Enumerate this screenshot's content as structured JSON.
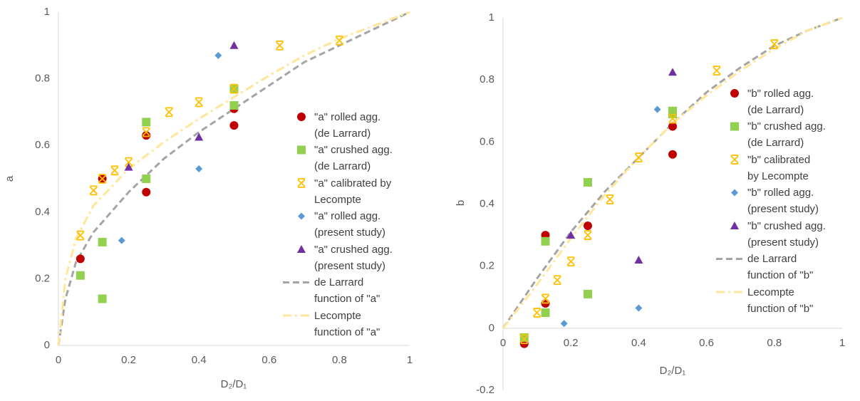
{
  "chart_data": [
    {
      "type": "scatter",
      "x_label": "D₂/D₁",
      "y_label": "a",
      "xlim": [
        0,
        1
      ],
      "ylim": [
        0,
        1
      ],
      "xticks": [
        0,
        0.2,
        0.4,
        0.6,
        0.8,
        1
      ],
      "yticks": [
        0,
        0.2,
        0.4,
        0.6,
        0.8,
        1
      ],
      "grid": false,
      "legend": "right",
      "series": [
        {
          "name": "\"a\" rolled agg.\n(de Larrard)",
          "color": "#c00000",
          "marker": "circle",
          "x": [
            0.0625,
            0.125,
            0.25,
            0.25,
            0.5,
            0.5
          ],
          "values": [
            0.26,
            0.5,
            0.63,
            0.46,
            0.71,
            0.66
          ]
        },
        {
          "name": "\"a\" crushed agg.\n(de Larrard)",
          "color": "#92d050",
          "marker": "square",
          "x": [
            0.0625,
            0.125,
            0.125,
            0.25,
            0.25,
            0.5,
            0.5
          ],
          "values": [
            0.21,
            0.31,
            0.14,
            0.67,
            0.5,
            0.77,
            0.72
          ]
        },
        {
          "name": "\"a\" calibrated by\nLecompte",
          "color": "#ffc000",
          "marker": "asterisk",
          "x": [
            0.0625,
            0.1,
            0.125,
            0.16,
            0.2,
            0.25,
            0.315,
            0.4,
            0.5,
            0.63,
            0.8
          ],
          "values": [
            0.33,
            0.465,
            0.5,
            0.525,
            0.55,
            0.64,
            0.7,
            0.73,
            0.77,
            0.9,
            0.915
          ]
        },
        {
          "name": "\"a\" rolled agg.\n(present study)",
          "color": "#5b9bd5",
          "marker": "diamond",
          "x": [
            0.18,
            0.4,
            0.455
          ],
          "values": [
            0.315,
            0.53,
            0.87
          ]
        },
        {
          "name": "\"a\" crushed agg.\n(present study)",
          "color": "#7030a0",
          "marker": "triangle",
          "x": [
            0.2,
            0.4,
            0.5
          ],
          "values": [
            0.535,
            0.625,
            0.9
          ]
        },
        {
          "name": "de Larrard\nfunction of \"a\"",
          "color": "#a5a5a5",
          "marker": "dash",
          "x": [
            0,
            0.02,
            0.05,
            0.1,
            0.2,
            0.3,
            0.4,
            0.5,
            0.6,
            0.7,
            0.8,
            0.9,
            1
          ],
          "values": [
            0,
            0.14,
            0.25,
            0.34,
            0.46,
            0.56,
            0.64,
            0.71,
            0.78,
            0.85,
            0.9,
            0.95,
            1
          ]
        },
        {
          "name": "Lecompte\nfunction of \"a\"",
          "color": "#ffe699",
          "marker": "dashdot",
          "x": [
            0,
            0.02,
            0.05,
            0.1,
            0.2,
            0.3,
            0.4,
            0.5,
            0.6,
            0.7,
            0.8,
            0.9,
            1
          ],
          "values": [
            0,
            0.2,
            0.32,
            0.42,
            0.53,
            0.61,
            0.68,
            0.745,
            0.81,
            0.87,
            0.92,
            0.96,
            1
          ]
        }
      ]
    },
    {
      "type": "scatter",
      "x_label": "D₂/D₁",
      "y_label": "b",
      "xlim": [
        0,
        1
      ],
      "ylim": [
        -0.2,
        1
      ],
      "xticks": [
        0,
        0.2,
        0.4,
        0.6,
        0.8,
        1
      ],
      "yticks": [
        -0.2,
        0,
        0.2,
        0.4,
        0.6,
        0.8,
        1
      ],
      "grid": false,
      "legend": "right",
      "series": [
        {
          "name": "\"b\" rolled agg.\n(de Larrard)",
          "color": "#c00000",
          "marker": "circle",
          "x": [
            0.0625,
            0.125,
            0.125,
            0.25,
            0.5,
            0.5
          ],
          "values": [
            -0.05,
            0.3,
            0.08,
            0.33,
            0.65,
            0.56
          ]
        },
        {
          "name": "\"b\" crushed agg.\n(de Larrard)",
          "color": "#92d050",
          "marker": "square",
          "x": [
            0.0625,
            0.125,
            0.125,
            0.25,
            0.25,
            0.5,
            0.5
          ],
          "values": [
            -0.03,
            0.28,
            0.05,
            0.47,
            0.11,
            0.7,
            0.69
          ]
        },
        {
          "name": "\"b\"  calibrated\nby Lecompte",
          "color": "#ffc000",
          "marker": "asterisk",
          "x": [
            0.0625,
            0.1,
            0.125,
            0.16,
            0.2,
            0.25,
            0.315,
            0.4,
            0.5,
            0.63,
            0.8
          ],
          "values": [
            -0.035,
            0.05,
            0.095,
            0.155,
            0.215,
            0.3,
            0.415,
            0.55,
            0.675,
            0.83,
            0.915
          ]
        },
        {
          "name": "\"b\" rolled agg.\n(present study)",
          "color": "#5b9bd5",
          "marker": "diamond",
          "x": [
            0.18,
            0.4,
            0.455
          ],
          "values": [
            0.015,
            0.065,
            0.705
          ]
        },
        {
          "name": "\"b\" crushed agg.\n(present study)",
          "color": "#7030a0",
          "marker": "triangle",
          "x": [
            0.2,
            0.4,
            0.5
          ],
          "values": [
            0.3,
            0.22,
            0.825
          ]
        },
        {
          "name": "de Larrard\nfunction of \"b\"",
          "color": "#a5a5a5",
          "marker": "dash",
          "x": [
            0,
            0.1,
            0.2,
            0.3,
            0.4,
            0.5,
            0.6,
            0.7,
            0.8,
            0.9,
            1
          ],
          "values": [
            0,
            0.16,
            0.31,
            0.44,
            0.55,
            0.66,
            0.76,
            0.84,
            0.91,
            0.96,
            1
          ]
        },
        {
          "name": "Lecompte\nfunction of \"b\"",
          "color": "#ffe699",
          "marker": "dashdot",
          "x": [
            0,
            0.1,
            0.2,
            0.3,
            0.4,
            0.5,
            0.6,
            0.7,
            0.8,
            0.9,
            1
          ],
          "values": [
            0,
            0.14,
            0.29,
            0.43,
            0.55,
            0.66,
            0.75,
            0.83,
            0.9,
            0.96,
            1
          ]
        }
      ]
    }
  ]
}
